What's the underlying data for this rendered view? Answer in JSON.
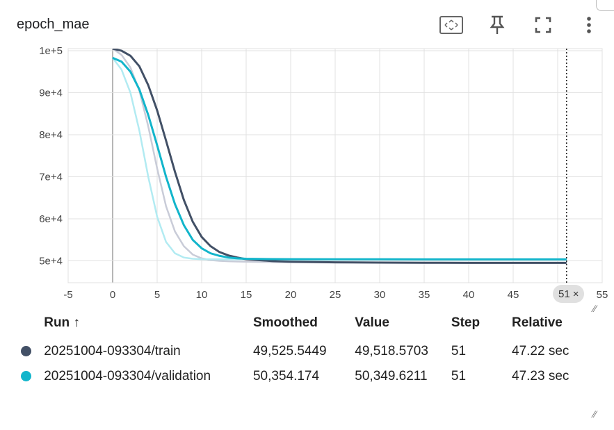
{
  "card": {
    "title": "epoch_mae",
    "icons": [
      "fit-domain-icon",
      "pin-icon",
      "fullscreen-icon",
      "more-vert-icon"
    ]
  },
  "chart_data": {
    "type": "line",
    "title": "epoch_mae",
    "xlabel": "",
    "ylabel": "",
    "x_ticks": [
      "-5",
      "0",
      "5",
      "10",
      "15",
      "20",
      "25",
      "30",
      "35",
      "40",
      "45",
      "50",
      "55"
    ],
    "y_ticks": [
      "1e+5",
      "9e+4",
      "8e+4",
      "7e+4",
      "6e+4",
      "5e+4"
    ],
    "xlim": [
      -5,
      55
    ],
    "ylim": [
      44800,
      100500
    ],
    "grid": true,
    "hover_step": 51,
    "hover_step_label": "51",
    "hover_close": "×",
    "series": [
      {
        "name": "20251004-093304/train",
        "color": "#425066",
        "raw_color": "#c9ccd8",
        "x": [
          0,
          1,
          2,
          3,
          4,
          5,
          6,
          7,
          8,
          9,
          10,
          11,
          12,
          13,
          14,
          15,
          18,
          20,
          25,
          30,
          35,
          40,
          45,
          51
        ],
        "smoothed": [
          100500,
          100000,
          98800,
          96300,
          91800,
          85800,
          78600,
          71200,
          64500,
          59300,
          55700,
          53500,
          52100,
          51300,
          50800,
          50400,
          49950,
          49800,
          49650,
          49600,
          49560,
          49540,
          49530,
          49525
        ],
        "raw": [
          100500,
          99000,
          96000,
          90500,
          82000,
          72000,
          63000,
          57000,
          53500,
          51500,
          50600,
          50200,
          50000,
          49900,
          49850,
          49800,
          49700,
          49650,
          49600,
          49560,
          49540,
          49530,
          49522,
          49519
        ]
      },
      {
        "name": "20251004-093304/validation",
        "color": "#12b5cb",
        "raw_color": "#b2ebf2",
        "x": [
          0,
          1,
          2,
          3,
          4,
          5,
          6,
          7,
          8,
          9,
          10,
          11,
          12,
          13,
          14,
          15,
          18,
          20,
          25,
          30,
          35,
          40,
          45,
          51
        ],
        "smoothed": [
          98300,
          97400,
          95000,
          90800,
          84700,
          77500,
          70000,
          63500,
          58500,
          55000,
          53000,
          51800,
          51200,
          50800,
          50600,
          50500,
          50420,
          50400,
          50380,
          50370,
          50360,
          50358,
          50355,
          50354
        ],
        "raw": [
          98300,
          95500,
          90000,
          81000,
          70000,
          60500,
          54500,
          51800,
          50800,
          50500,
          50400,
          50380,
          50370,
          50365,
          50360,
          50358,
          50356,
          50355,
          50353,
          50352,
          50351,
          50350,
          50350,
          50349.6
        ]
      }
    ]
  },
  "legend": {
    "headers": {
      "run": "Run ↑",
      "smoothed": "Smoothed",
      "value": "Value",
      "step": "Step",
      "relative": "Relative"
    },
    "rows": [
      {
        "color": "#425066",
        "run": "20251004-093304/train",
        "smoothed": "49,525.5449",
        "value": "49,518.5703",
        "step": "51",
        "relative": "47.22 sec"
      },
      {
        "color": "#12b5cb",
        "run": "20251004-093304/validation",
        "smoothed": "50,354.174",
        "value": "50,349.6211",
        "step": "51",
        "relative": "47.23 sec"
      }
    ]
  }
}
